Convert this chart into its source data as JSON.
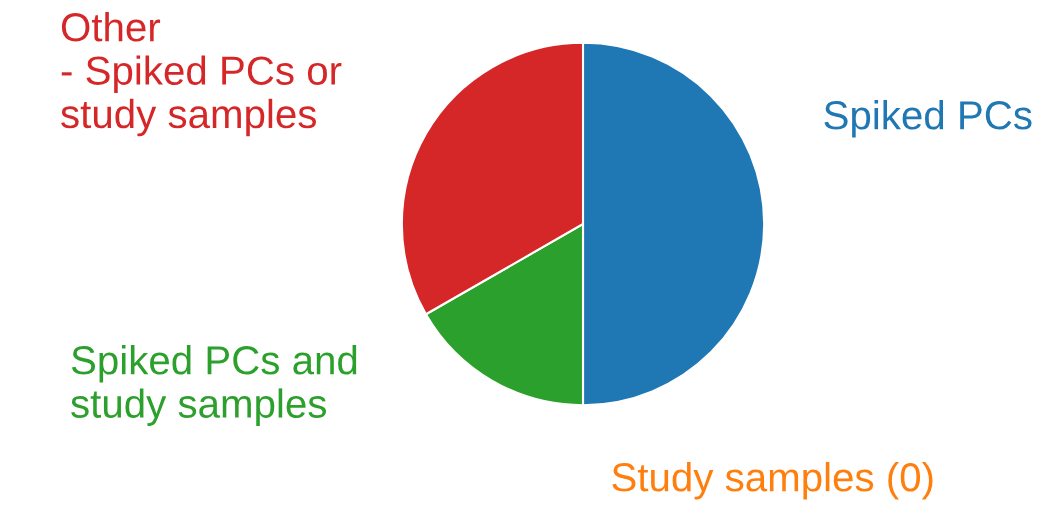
{
  "chart_data": {
    "type": "pie",
    "categories": [
      "Spiked PCs",
      "Study samples (0)",
      "Spiked PCs and\nstudy samples",
      "Other\n- Spiked PCs or\nstudy samples"
    ],
    "values": [
      50,
      0,
      16.7,
      33.3
    ],
    "colors": [
      "#1f77b4",
      "#ff7f0e",
      "#2ca02c",
      "#d62728"
    ]
  }
}
